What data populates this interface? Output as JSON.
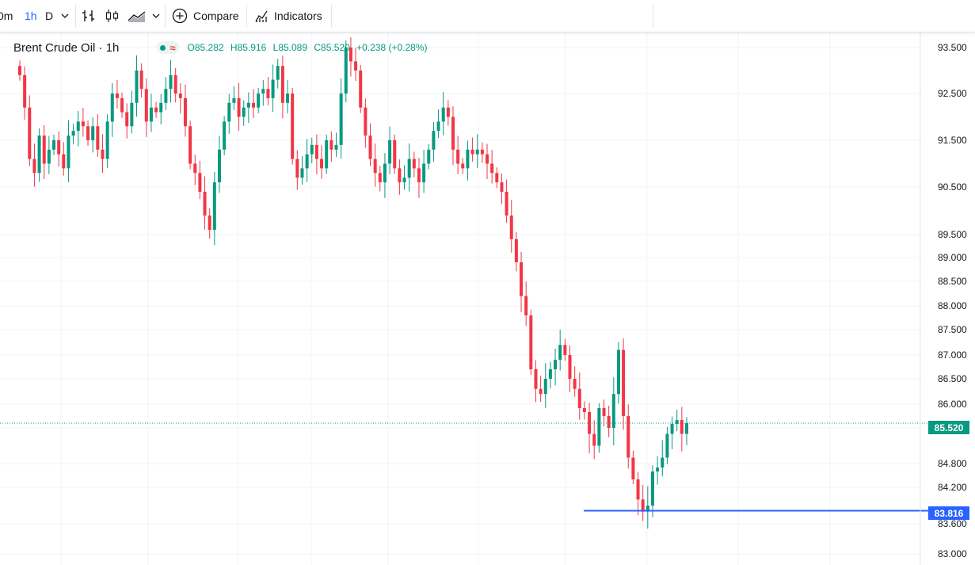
{
  "toolbar": {
    "intervals": [
      {
        "label": "0m",
        "active": false
      },
      {
        "label": "1h",
        "active": true
      },
      {
        "label": "D",
        "active": false
      }
    ],
    "compare_label": "Compare",
    "indicators_label": "Indicators",
    "icons": [
      "chevron-down-icon",
      "bar-chart-icon",
      "candles-icon",
      "area-chart-icon",
      "plus-circle-icon",
      "indicators-icon"
    ]
  },
  "legend": {
    "symbol": "Brent Crude Oil · 1h",
    "open_label": "O",
    "open": "85.282",
    "high_label": "H",
    "high": "85.916",
    "low_label": "L",
    "low": "85.089",
    "close_label": "C",
    "close": "85.520",
    "change": "+0.238 (+0.28%)"
  },
  "colors": {
    "up": "#089981",
    "down": "#f23645",
    "line": "#2962ff",
    "grid": "#f0f3fa"
  },
  "chart_data": {
    "type": "candlestick",
    "title": "Brent Crude Oil · 1h",
    "y_tick_labels": [
      "93.500",
      "92.500",
      "91.500",
      "90.500",
      "89.500",
      "89.000",
      "88.500",
      "88.000",
      "87.500",
      "87.000",
      "86.500",
      "86.000",
      "85.400",
      "84.800",
      "84.200",
      "83.600",
      "83.000"
    ],
    "last_price": "85.520",
    "horizontal_line": "83.816",
    "ylim": [
      82.85,
      93.75
    ],
    "close": [
      92.9,
      92.2,
      91.1,
      90.8,
      91.6,
      91.0,
      91.3,
      91.5,
      91.2,
      90.9,
      91.6,
      91.7,
      91.9,
      91.8,
      91.5,
      91.8,
      91.3,
      91.1,
      91.9,
      92.5,
      92.4,
      92.1,
      91.8,
      92.3,
      93.0,
      92.6,
      91.9,
      92.2,
      92.1,
      92.3,
      92.6,
      92.9,
      92.5,
      92.4,
      91.8,
      91.0,
      90.8,
      90.4,
      89.9,
      89.6,
      90.6,
      91.3,
      91.9,
      92.3,
      92.4,
      92.0,
      92.2,
      92.3,
      92.2,
      92.5,
      92.6,
      92.4,
      92.8,
      93.1,
      92.3,
      92.5,
      91.1,
      90.7,
      90.9,
      91.2,
      91.4,
      91.1,
      90.9,
      91.5,
      91.3,
      91.4,
      92.5,
      93.5,
      93.2,
      93.0,
      92.2,
      91.6,
      91.1,
      90.8,
      90.6,
      91.0,
      91.5,
      90.9,
      90.6,
      90.7,
      91.1,
      90.9,
      90.6,
      91.0,
      91.3,
      91.7,
      91.9,
      92.2,
      92.0,
      91.3,
      91.0,
      90.9,
      91.3,
      91.2,
      91.3,
      91.2,
      91.0,
      90.8,
      90.6,
      90.4,
      89.9,
      89.4,
      88.9,
      88.2,
      87.8,
      86.7,
      86.3,
      86.2,
      86.5,
      86.7,
      86.9,
      87.2,
      87.0,
      86.5,
      86.3,
      85.9,
      85.8,
      85.3,
      85.1,
      85.9,
      85.7,
      85.4,
      86.2,
      87.1,
      85.7,
      84.9,
      84.4,
      84.0,
      83.8,
      83.9,
      84.6,
      84.7,
      84.9,
      85.3,
      85.5,
      85.6,
      85.3,
      85.52
    ]
  }
}
